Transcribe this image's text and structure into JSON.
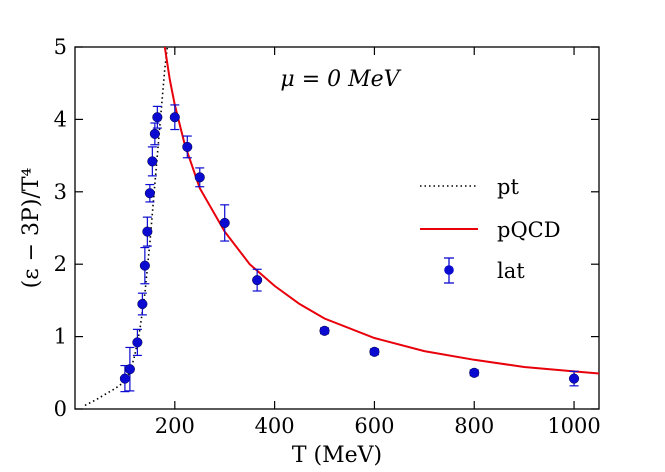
{
  "chart_data": {
    "type": "line",
    "title": "",
    "xlabel": "T (MeV)",
    "ylabel": "(ε − 3P)/T⁴",
    "xlim": [
      0,
      1050
    ],
    "ylim": [
      0,
      5
    ],
    "xticks": [
      200,
      400,
      600,
      800,
      1000
    ],
    "yticks": [
      0,
      1,
      2,
      3,
      4,
      5
    ],
    "xtick_labels": [
      "200",
      "400",
      "600",
      "800",
      "1000"
    ],
    "ytick_labels": [
      "0",
      "1",
      "2",
      "3",
      "4",
      "5"
    ],
    "annotation": "μ = 0 MeV",
    "legend_position": "right",
    "series": [
      {
        "name": "pt",
        "style": "dotted",
        "color": "#000000",
        "x": [
          20,
          40,
          60,
          80,
          100,
          110,
          120,
          130,
          140,
          150,
          160,
          170,
          180,
          185
        ],
        "y": [
          0.05,
          0.12,
          0.2,
          0.28,
          0.38,
          0.5,
          0.75,
          1.1,
          1.6,
          2.3,
          3.1,
          3.9,
          4.7,
          5.0
        ]
      },
      {
        "name": "pQCD",
        "style": "solid",
        "color": "#e8000b",
        "x": [
          180,
          190,
          200,
          220,
          250,
          300,
          350,
          400,
          450,
          500,
          600,
          700,
          800,
          900,
          1000,
          1050
        ],
        "y": [
          5.0,
          4.55,
          4.2,
          3.65,
          3.05,
          2.45,
          2.0,
          1.7,
          1.45,
          1.25,
          0.98,
          0.8,
          0.68,
          0.58,
          0.52,
          0.49
        ]
      },
      {
        "name": "lat",
        "style": "points",
        "color": "#0a0ad0",
        "x": [
          100,
          110,
          125,
          135,
          140,
          145,
          150,
          155,
          160,
          165,
          200,
          225,
          250,
          300,
          365,
          500,
          600,
          800,
          1000
        ],
        "y": [
          0.42,
          0.55,
          0.92,
          1.45,
          1.98,
          2.45,
          2.98,
          3.42,
          3.8,
          4.03,
          4.03,
          3.62,
          3.2,
          2.57,
          1.78,
          1.08,
          0.79,
          0.5,
          0.42
        ],
        "yerr": [
          0.18,
          0.3,
          0.18,
          0.15,
          0.25,
          0.2,
          0.12,
          0.2,
          0.15,
          0.15,
          0.17,
          0.15,
          0.13,
          0.25,
          0.15,
          0.04,
          0.04,
          0.04,
          0.1
        ]
      }
    ]
  }
}
